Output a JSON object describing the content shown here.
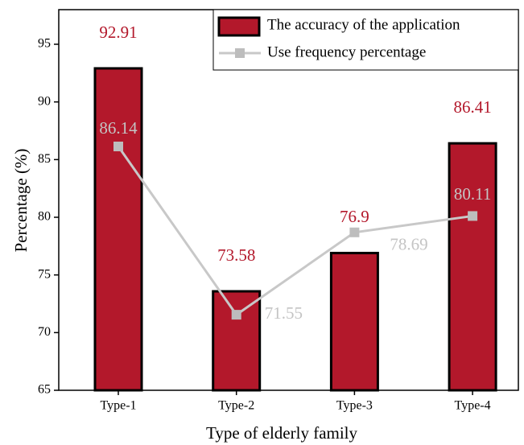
{
  "chart_data": {
    "type": "bar",
    "x_label": "Type of elderly family",
    "y_label": "Percentage (%)",
    "categories": [
      "Type-1",
      "Type-2",
      "Type-3",
      "Type-4"
    ],
    "series": [
      {
        "name": "The accuracy of the application",
        "type": "bar",
        "color": "#b3182b",
        "label_color": "#b3182b",
        "values": [
          92.91,
          73.58,
          76.9,
          86.41
        ]
      },
      {
        "name": "Use frequency percentage",
        "type": "line",
        "color": "#c8c8c8",
        "label_color": "#c4c4c4",
        "values": [
          86.14,
          71.55,
          78.69,
          80.11
        ]
      }
    ],
    "ylim": [
      65,
      98
    ],
    "yticks": [
      65,
      70,
      75,
      80,
      85,
      90,
      95
    ],
    "legend": "upper right"
  }
}
